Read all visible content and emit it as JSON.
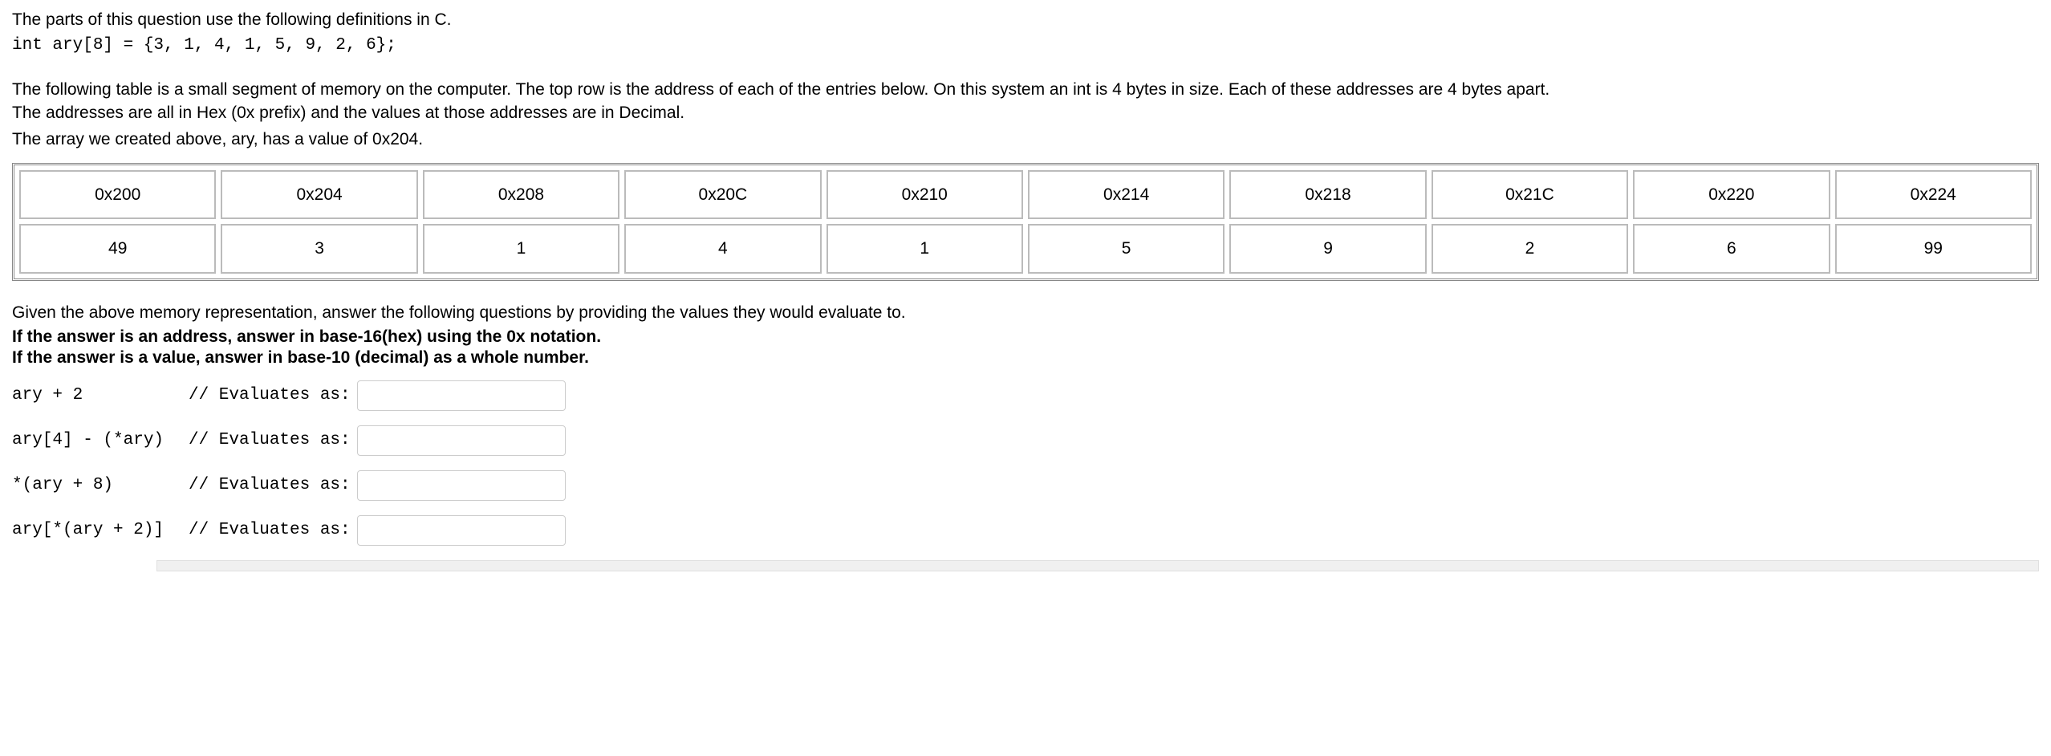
{
  "intro": "The parts of this question use the following definitions in C.",
  "code_line": "int ary[8] = {3, 1, 4, 1, 5, 9, 2, 6};",
  "description_line1": "The following table is a small segment of memory on the computer. The top row is the address of each of the entries below. On this system an int is 4 bytes in size. Each of these addresses are 4 bytes apart.",
  "description_line2": "The addresses are all in Hex (0x prefix) and the values at those addresses are in Decimal.",
  "array_note": "The array we created above, ary, has a value of 0x204.",
  "memory_table": {
    "addresses": [
      "0x200",
      "0x204",
      "0x208",
      "0x20C",
      "0x210",
      "0x214",
      "0x218",
      "0x21C",
      "0x220",
      "0x224"
    ],
    "values": [
      "49",
      "3",
      "1",
      "4",
      "1",
      "5",
      "9",
      "2",
      "6",
      "99"
    ]
  },
  "post_table": "Given the above memory representation, answer the following questions by providing the values they would evaluate to.",
  "instruction_line1": "If the answer is an address, answer in base-16(hex) using the 0x notation.",
  "instruction_line2": "If the answer is a value, answer in base-10 (decimal) as a whole number.",
  "eval_label": "// Evaluates as:",
  "questions": [
    {
      "expr": "ary + 2          "
    },
    {
      "expr": "ary[4] - (*ary)  "
    },
    {
      "expr": "*(ary + 8)       "
    },
    {
      "expr": "ary[*(ary + 2)]  "
    }
  ]
}
